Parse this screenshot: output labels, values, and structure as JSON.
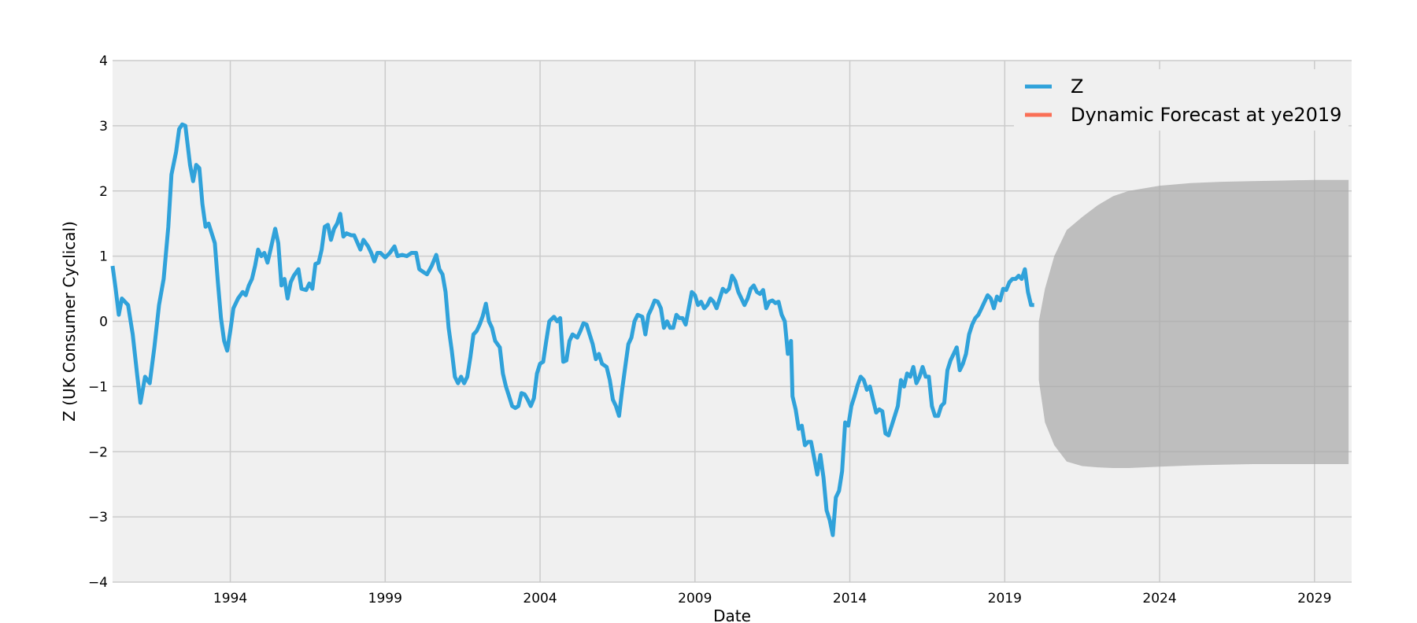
{
  "chart_data": {
    "type": "line",
    "title": "",
    "xlabel": "Date",
    "ylabel": "Z (UK Consumer Cyclical)",
    "xlim": [
      1990.2,
      2030.2
    ],
    "ylim": [
      -4,
      4
    ],
    "x_ticks": [
      1994,
      1999,
      2004,
      2009,
      2014,
      2019,
      2024,
      2029
    ],
    "y_ticks": [
      -4,
      -3,
      -2,
      -1,
      0,
      1,
      2,
      3,
      4
    ],
    "grid": true,
    "legend_placement": "top-right",
    "background_color": "#f0f0f0",
    "series": [
      {
        "name": "Z",
        "color": "#30a2da",
        "points": [
          [
            1990.2,
            0.85
          ],
          [
            1990.3,
            0.5
          ],
          [
            1990.4,
            0.1
          ],
          [
            1990.5,
            0.35
          ],
          [
            1990.7,
            0.25
          ],
          [
            1990.85,
            -0.2
          ],
          [
            1991.0,
            -0.85
          ],
          [
            1991.1,
            -1.25
          ],
          [
            1991.25,
            -0.85
          ],
          [
            1991.4,
            -0.95
          ],
          [
            1991.55,
            -0.4
          ],
          [
            1991.7,
            0.25
          ],
          [
            1991.85,
            0.65
          ],
          [
            1992.0,
            1.45
          ],
          [
            1992.1,
            2.25
          ],
          [
            1992.25,
            2.6
          ],
          [
            1992.35,
            2.95
          ],
          [
            1992.45,
            3.02
          ],
          [
            1992.55,
            3.0
          ],
          [
            1992.7,
            2.4
          ],
          [
            1992.8,
            2.15
          ],
          [
            1992.9,
            2.4
          ],
          [
            1993.0,
            2.35
          ],
          [
            1993.1,
            1.8
          ],
          [
            1993.2,
            1.45
          ],
          [
            1993.3,
            1.5
          ],
          [
            1993.5,
            1.2
          ],
          [
            1993.6,
            0.6
          ],
          [
            1993.7,
            0.05
          ],
          [
            1993.8,
            -0.3
          ],
          [
            1993.9,
            -0.45
          ],
          [
            1994.0,
            -0.15
          ],
          [
            1994.1,
            0.2
          ],
          [
            1994.25,
            0.35
          ],
          [
            1994.4,
            0.45
          ],
          [
            1994.5,
            0.4
          ],
          [
            1994.6,
            0.55
          ],
          [
            1994.7,
            0.65
          ],
          [
            1994.8,
            0.85
          ],
          [
            1994.9,
            1.1
          ],
          [
            1995.0,
            1.0
          ],
          [
            1995.1,
            1.05
          ],
          [
            1995.2,
            0.9
          ],
          [
            1995.3,
            1.1
          ],
          [
            1995.45,
            1.42
          ],
          [
            1995.55,
            1.2
          ],
          [
            1995.65,
            0.55
          ],
          [
            1995.75,
            0.65
          ],
          [
            1995.85,
            0.35
          ],
          [
            1995.95,
            0.6
          ],
          [
            1996.05,
            0.7
          ],
          [
            1996.2,
            0.8
          ],
          [
            1996.3,
            0.5
          ],
          [
            1996.45,
            0.48
          ],
          [
            1996.55,
            0.58
          ],
          [
            1996.65,
            0.5
          ],
          [
            1996.75,
            0.88
          ],
          [
            1996.85,
            0.9
          ],
          [
            1996.95,
            1.1
          ],
          [
            1997.05,
            1.45
          ],
          [
            1997.15,
            1.48
          ],
          [
            1997.25,
            1.25
          ],
          [
            1997.35,
            1.42
          ],
          [
            1997.45,
            1.5
          ],
          [
            1997.55,
            1.65
          ],
          [
            1997.65,
            1.3
          ],
          [
            1997.75,
            1.35
          ],
          [
            1997.9,
            1.32
          ],
          [
            1998.0,
            1.32
          ],
          [
            1998.2,
            1.1
          ],
          [
            1998.3,
            1.25
          ],
          [
            1998.45,
            1.15
          ],
          [
            1998.55,
            1.05
          ],
          [
            1998.65,
            0.92
          ],
          [
            1998.75,
            1.05
          ],
          [
            1998.85,
            1.05
          ],
          [
            1999.0,
            0.98
          ],
          [
            1999.15,
            1.05
          ],
          [
            1999.3,
            1.15
          ],
          [
            1999.4,
            1.0
          ],
          [
            1999.55,
            1.02
          ],
          [
            1999.7,
            1.0
          ],
          [
            1999.85,
            1.05
          ],
          [
            2000.0,
            1.05
          ],
          [
            2000.1,
            0.8
          ],
          [
            2000.25,
            0.75
          ],
          [
            2000.35,
            0.72
          ],
          [
            2000.5,
            0.85
          ],
          [
            2000.65,
            1.02
          ],
          [
            2000.75,
            0.8
          ],
          [
            2000.85,
            0.72
          ],
          [
            2000.95,
            0.45
          ],
          [
            2001.05,
            -0.1
          ],
          [
            2001.15,
            -0.45
          ],
          [
            2001.25,
            -0.85
          ],
          [
            2001.35,
            -0.95
          ],
          [
            2001.45,
            -0.85
          ],
          [
            2001.55,
            -0.95
          ],
          [
            2001.65,
            -0.85
          ],
          [
            2001.75,
            -0.55
          ],
          [
            2001.85,
            -0.2
          ],
          [
            2001.95,
            -0.15
          ],
          [
            2002.05,
            -0.05
          ],
          [
            2002.15,
            0.08
          ],
          [
            2002.25,
            0.27
          ],
          [
            2002.35,
            0.0
          ],
          [
            2002.45,
            -0.1
          ],
          [
            2002.55,
            -0.3
          ],
          [
            2002.7,
            -0.4
          ],
          [
            2002.8,
            -0.8
          ],
          [
            2002.9,
            -1.0
          ],
          [
            2003.0,
            -1.15
          ],
          [
            2003.1,
            -1.3
          ],
          [
            2003.2,
            -1.33
          ],
          [
            2003.3,
            -1.3
          ],
          [
            2003.4,
            -1.1
          ],
          [
            2003.5,
            -1.12
          ],
          [
            2003.6,
            -1.2
          ],
          [
            2003.7,
            -1.3
          ],
          [
            2003.8,
            -1.18
          ],
          [
            2003.9,
            -0.8
          ],
          [
            2004.0,
            -0.65
          ],
          [
            2004.1,
            -0.62
          ],
          [
            2004.2,
            -0.3
          ],
          [
            2004.3,
            0.0
          ],
          [
            2004.45,
            0.07
          ],
          [
            2004.55,
            0.0
          ],
          [
            2004.65,
            0.05
          ],
          [
            2004.75,
            -0.62
          ],
          [
            2004.85,
            -0.6
          ],
          [
            2004.95,
            -0.3
          ],
          [
            2005.05,
            -0.2
          ],
          [
            2005.2,
            -0.25
          ],
          [
            2005.3,
            -0.15
          ],
          [
            2005.4,
            -0.03
          ],
          [
            2005.5,
            -0.05
          ],
          [
            2005.6,
            -0.2
          ],
          [
            2005.7,
            -0.35
          ],
          [
            2005.8,
            -0.58
          ],
          [
            2005.9,
            -0.5
          ],
          [
            2006.0,
            -0.65
          ],
          [
            2006.15,
            -0.7
          ],
          [
            2006.25,
            -0.9
          ],
          [
            2006.35,
            -1.2
          ],
          [
            2006.45,
            -1.3
          ],
          [
            2006.55,
            -1.45
          ],
          [
            2006.65,
            -1.05
          ],
          [
            2006.75,
            -0.7
          ],
          [
            2006.85,
            -0.35
          ],
          [
            2006.95,
            -0.25
          ],
          [
            2007.05,
            0.0
          ],
          [
            2007.15,
            0.1
          ],
          [
            2007.3,
            0.07
          ],
          [
            2007.4,
            -0.2
          ],
          [
            2007.5,
            0.1
          ],
          [
            2007.6,
            0.2
          ],
          [
            2007.7,
            0.32
          ],
          [
            2007.8,
            0.3
          ],
          [
            2007.9,
            0.2
          ],
          [
            2008.0,
            -0.1
          ],
          [
            2008.1,
            0.0
          ],
          [
            2008.2,
            -0.1
          ],
          [
            2008.3,
            -0.1
          ],
          [
            2008.4,
            0.1
          ],
          [
            2008.5,
            0.05
          ],
          [
            2008.6,
            0.05
          ],
          [
            2008.7,
            -0.05
          ],
          [
            2008.8,
            0.2
          ],
          [
            2008.9,
            0.45
          ],
          [
            2009.0,
            0.4
          ],
          [
            2009.1,
            0.25
          ],
          [
            2009.2,
            0.3
          ],
          [
            2009.3,
            0.2
          ],
          [
            2009.4,
            0.25
          ],
          [
            2009.5,
            0.35
          ],
          [
            2009.6,
            0.3
          ],
          [
            2009.7,
            0.2
          ],
          [
            2009.8,
            0.35
          ],
          [
            2009.9,
            0.5
          ],
          [
            2010.0,
            0.45
          ],
          [
            2010.1,
            0.5
          ],
          [
            2010.2,
            0.7
          ],
          [
            2010.3,
            0.62
          ],
          [
            2010.4,
            0.45
          ],
          [
            2010.5,
            0.35
          ],
          [
            2010.6,
            0.25
          ],
          [
            2010.7,
            0.35
          ],
          [
            2010.8,
            0.5
          ],
          [
            2010.9,
            0.55
          ],
          [
            2011.0,
            0.45
          ],
          [
            2011.1,
            0.42
          ],
          [
            2011.2,
            0.48
          ],
          [
            2011.3,
            0.2
          ],
          [
            2011.4,
            0.3
          ],
          [
            2011.5,
            0.32
          ],
          [
            2011.6,
            0.28
          ],
          [
            2011.7,
            0.3
          ],
          [
            2011.8,
            0.1
          ],
          [
            2011.9,
            0.0
          ],
          [
            2012.0,
            -0.5
          ],
          [
            2012.1,
            -0.3
          ],
          [
            2012.15,
            -1.15
          ],
          [
            2012.25,
            -1.35
          ],
          [
            2012.35,
            -1.65
          ],
          [
            2012.45,
            -1.6
          ],
          [
            2012.55,
            -1.9
          ],
          [
            2012.65,
            -1.85
          ],
          [
            2012.75,
            -1.85
          ],
          [
            2012.85,
            -2.1
          ],
          [
            2012.95,
            -2.35
          ],
          [
            2013.05,
            -2.05
          ],
          [
            2013.15,
            -2.4
          ],
          [
            2013.25,
            -2.9
          ],
          [
            2013.35,
            -3.05
          ],
          [
            2013.45,
            -3.28
          ],
          [
            2013.55,
            -2.7
          ],
          [
            2013.65,
            -2.6
          ],
          [
            2013.75,
            -2.3
          ],
          [
            2013.85,
            -1.55
          ],
          [
            2013.95,
            -1.6
          ],
          [
            2014.05,
            -1.3
          ],
          [
            2014.15,
            -1.15
          ],
          [
            2014.25,
            -0.98
          ],
          [
            2014.35,
            -0.85
          ],
          [
            2014.45,
            -0.9
          ],
          [
            2014.55,
            -1.05
          ],
          [
            2014.65,
            -1.0
          ],
          [
            2014.75,
            -1.2
          ],
          [
            2014.85,
            -1.4
          ],
          [
            2014.95,
            -1.35
          ],
          [
            2015.05,
            -1.38
          ],
          [
            2015.15,
            -1.72
          ],
          [
            2015.25,
            -1.75
          ],
          [
            2015.35,
            -1.6
          ],
          [
            2015.45,
            -1.45
          ],
          [
            2015.55,
            -1.3
          ],
          [
            2015.65,
            -0.9
          ],
          [
            2015.75,
            -1.0
          ],
          [
            2015.85,
            -0.8
          ],
          [
            2015.95,
            -0.85
          ],
          [
            2016.05,
            -0.7
          ],
          [
            2016.15,
            -0.95
          ],
          [
            2016.25,
            -0.85
          ],
          [
            2016.35,
            -0.7
          ],
          [
            2016.45,
            -0.85
          ],
          [
            2016.55,
            -0.85
          ],
          [
            2016.65,
            -1.3
          ],
          [
            2016.75,
            -1.45
          ],
          [
            2016.85,
            -1.45
          ],
          [
            2016.95,
            -1.3
          ],
          [
            2017.05,
            -1.25
          ],
          [
            2017.15,
            -0.75
          ],
          [
            2017.25,
            -0.6
          ],
          [
            2017.35,
            -0.5
          ],
          [
            2017.45,
            -0.4
          ],
          [
            2017.55,
            -0.75
          ],
          [
            2017.65,
            -0.65
          ],
          [
            2017.75,
            -0.5
          ],
          [
            2017.85,
            -0.2
          ],
          [
            2017.95,
            -0.05
          ],
          [
            2018.05,
            0.05
          ],
          [
            2018.15,
            0.1
          ],
          [
            2018.25,
            0.2
          ],
          [
            2018.35,
            0.3
          ],
          [
            2018.45,
            0.4
          ],
          [
            2018.55,
            0.35
          ],
          [
            2018.65,
            0.2
          ],
          [
            2018.75,
            0.38
          ],
          [
            2018.85,
            0.32
          ],
          [
            2018.95,
            0.5
          ],
          [
            2019.05,
            0.48
          ],
          [
            2019.15,
            0.6
          ],
          [
            2019.25,
            0.65
          ],
          [
            2019.35,
            0.65
          ],
          [
            2019.45,
            0.7
          ],
          [
            2019.55,
            0.65
          ],
          [
            2019.65,
            0.8
          ],
          [
            2019.75,
            0.45
          ],
          [
            2019.85,
            0.25
          ],
          [
            2019.95,
            0.25
          ]
        ]
      },
      {
        "name": "Dynamic Forecast at ye2019",
        "color": "#fc4f30",
        "points": []
      }
    ],
    "confidence_band": {
      "color": "#a8a8a8",
      "x": [
        2020.1,
        2020.3,
        2020.6,
        2021.0,
        2021.5,
        2022.0,
        2022.5,
        2023.0,
        2024.0,
        2025.0,
        2026.0,
        2027.0,
        2028.0,
        2029.0,
        2030.1
      ],
      "upper": [
        0.0,
        0.5,
        1.0,
        1.4,
        1.6,
        1.78,
        1.92,
        2.0,
        2.08,
        2.12,
        2.14,
        2.15,
        2.16,
        2.17,
        2.17
      ],
      "lower": [
        -0.9,
        -1.55,
        -1.9,
        -2.15,
        -2.22,
        -2.24,
        -2.25,
        -2.25,
        -2.23,
        -2.21,
        -2.2,
        -2.19,
        -2.19,
        -2.19,
        -2.19
      ]
    }
  }
}
